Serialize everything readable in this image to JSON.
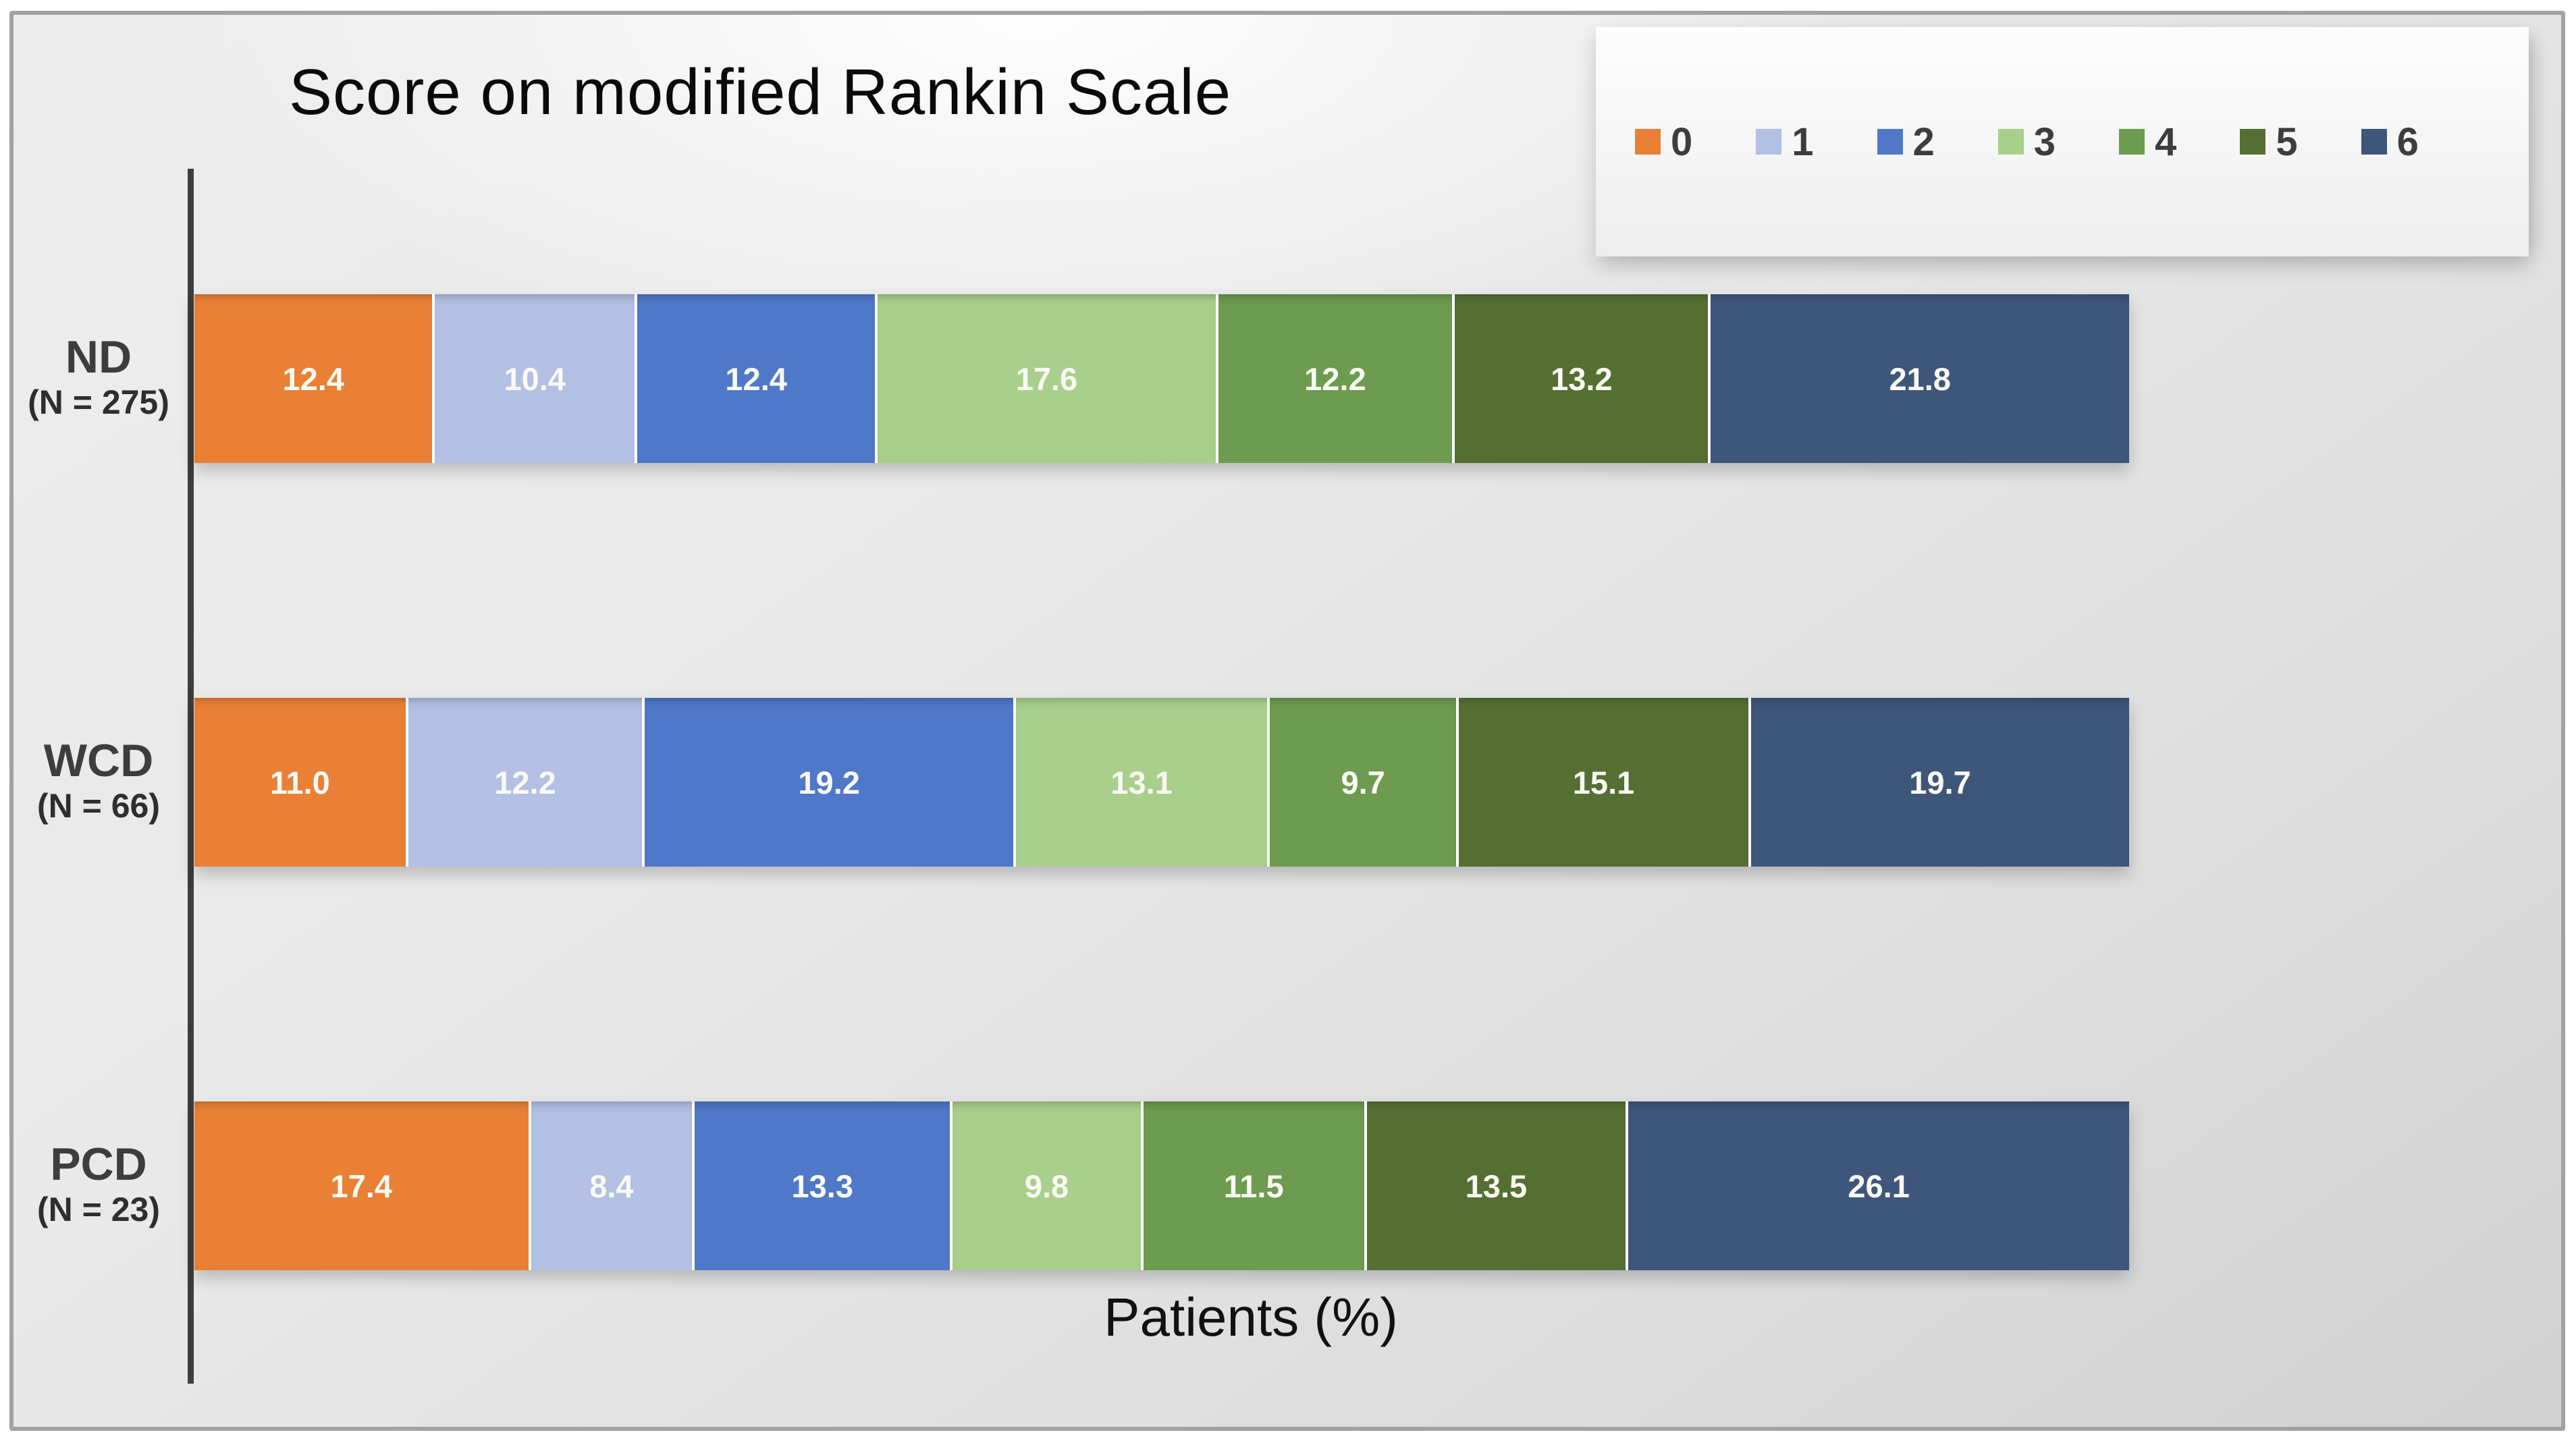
{
  "chart_data": {
    "type": "bar",
    "orientation": "horizontal-stacked",
    "title": "Score on modified Rankin Scale",
    "xlabel": "Patients (%)",
    "xlim": [
      0,
      100
    ],
    "grid": false,
    "legend_position": "top-right",
    "axis_line_color": "#3d3d3d",
    "value_label_color": "#fafaf4",
    "categories": [
      {
        "label": "ND",
        "n_label": "(N = 275)"
      },
      {
        "label": "WCD",
        "n_label": "(N = 66)"
      },
      {
        "label": "PCD",
        "n_label": "(N = 23)"
      }
    ],
    "series": [
      {
        "name": "0",
        "color": "#E98035",
        "values": [
          12.4,
          11.0,
          17.4
        ],
        "value_labels": [
          "12.4",
          "11.0",
          "17.4"
        ]
      },
      {
        "name": "1",
        "color": "#B3C0E3",
        "values": [
          10.4,
          12.2,
          8.4
        ],
        "value_labels": [
          "10.4",
          "12.2",
          "8.4"
        ]
      },
      {
        "name": "2",
        "color": "#4F78C8",
        "values": [
          12.4,
          19.2,
          13.3
        ],
        "value_labels": [
          "12.4",
          "19.2",
          "13.3"
        ]
      },
      {
        "name": "3",
        "color": "#A9CF8C",
        "values": [
          17.6,
          13.1,
          9.8
        ],
        "value_labels": [
          "17.6",
          "13.1",
          "9.8"
        ]
      },
      {
        "name": "4",
        "color": "#6D9B4F",
        "values": [
          12.2,
          9.7,
          11.5
        ],
        "value_labels": [
          "12.2",
          "9.7",
          "11.5"
        ]
      },
      {
        "name": "5",
        "color": "#556F33",
        "values": [
          13.2,
          15.1,
          13.5
        ],
        "value_labels": [
          "13.2",
          "15.1",
          "13.5"
        ]
      },
      {
        "name": "6",
        "color": "#3F567B",
        "values": [
          21.8,
          19.7,
          26.1
        ],
        "value_labels": [
          "21.8",
          "19.7",
          "26.1"
        ]
      }
    ]
  }
}
